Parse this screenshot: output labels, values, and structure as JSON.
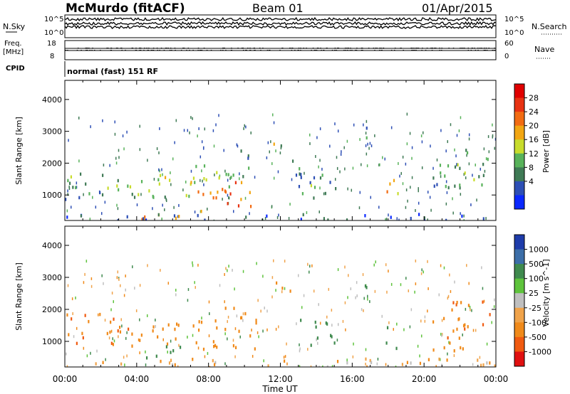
{
  "header": {
    "station": "McMurdo (fitACF)",
    "beam": "Beam 01",
    "date": "01/Apr/2015"
  },
  "top_panels": {
    "noise": {
      "left_label": "N.Sky",
      "right_label": "N.Search",
      "left_ticks": [
        "10^5",
        "10^0"
      ],
      "right_ticks": [
        "10^5",
        "10^0"
      ]
    },
    "freq": {
      "left_label_1": "Freq.",
      "left_label_2": "[MHz]",
      "right_label": "Nave",
      "left_ticks": [
        "18",
        "8"
      ],
      "right_ticks": [
        "60",
        "0"
      ]
    },
    "cpid": {
      "label": "CPID",
      "value": "normal (fast) 151 RF"
    }
  },
  "colors": {
    "power_scale": [
      "#0a28ff",
      "#2d4fb5",
      "#3f7a55",
      "#58b25a",
      "#c8dc2c",
      "#f2a612",
      "#f26b12",
      "#e83212",
      "#e00000"
    ],
    "velocity_scale": [
      "#1e3caa",
      "#3c6ea8",
      "#3f8a4e",
      "#5ec33c",
      "#bfbfbf",
      "#f0a34a",
      "#f08a1a",
      "#f05a10",
      "#e01010"
    ]
  },
  "chart_data": [
    {
      "type": "heatmap",
      "name": "power",
      "xlabel": "Time UT",
      "ylabel": "Slant Range [km]",
      "xlim": [
        0,
        24
      ],
      "ylim": [
        200,
        4600
      ],
      "x_tick_labels": [
        "00:00",
        "04:00",
        "08:00",
        "12:00",
        "16:00",
        "20:00",
        "00:00"
      ],
      "y_tick_labels": [
        "1000",
        "2000",
        "3000",
        "4000"
      ],
      "colorbar_label": "Power [dB]",
      "colorbar_ticks": [
        "28",
        "24",
        "20",
        "16",
        "12",
        "8",
        "4"
      ],
      "regions": [
        {
          "t": [
            0.0,
            2.8
          ],
          "r": [
            900,
            1800
          ],
          "v": 12
        },
        {
          "t": [
            2.8,
            6.0
          ],
          "r": [
            800,
            1700
          ],
          "v": 14
        },
        {
          "t": [
            4.0,
            7.5
          ],
          "r": [
            200,
            500
          ],
          "v": 26
        },
        {
          "t": [
            5.0,
            7.2
          ],
          "r": [
            1000,
            1600
          ],
          "v": 18
        },
        {
          "t": [
            7.2,
            10.4
          ],
          "r": [
            500,
            1500
          ],
          "v": 26
        },
        {
          "t": [
            7.0,
            10.5
          ],
          "r": [
            1300,
            2000
          ],
          "v": 14
        },
        {
          "t": [
            9.0,
            10.5
          ],
          "r": [
            2100,
            2500
          ],
          "v": 10
        },
        {
          "t": [
            11.5,
            12.5
          ],
          "r": [
            2500,
            2900
          ],
          "v": 16
        },
        {
          "t": [
            12.0,
            13.2
          ],
          "r": [
            1300,
            2200
          ],
          "v": 10
        },
        {
          "t": [
            13.0,
            15.2
          ],
          "r": [
            900,
            1700
          ],
          "v": 12
        },
        {
          "t": [
            13.5,
            14.3
          ],
          "r": [
            1200,
            1600
          ],
          "v": 18
        },
        {
          "t": [
            16.2,
            16.8
          ],
          "r": [
            2700,
            3200
          ],
          "v": 8
        },
        {
          "t": [
            17.8,
            18.7
          ],
          "r": [
            800,
            1600
          ],
          "v": 22
        },
        {
          "t": [
            20.4,
            22.0
          ],
          "r": [
            800,
            2100
          ],
          "v": 10
        },
        {
          "t": [
            21.8,
            23.6
          ],
          "r": [
            1200,
            2500
          ],
          "v": 14
        },
        {
          "t": [
            0.0,
            24.0
          ],
          "r": [
            250,
            450
          ],
          "v": 6
        }
      ]
    },
    {
      "type": "heatmap",
      "name": "velocity",
      "xlabel": "Time UT",
      "ylabel": "Slant Range [km]",
      "xlim": [
        0,
        24
      ],
      "ylim": [
        200,
        4600
      ],
      "x_tick_labels": [
        "00:00",
        "04:00",
        "08:00",
        "12:00",
        "16:00",
        "20:00",
        "00:00"
      ],
      "y_tick_labels": [
        "1000",
        "2000",
        "3000",
        "4000"
      ],
      "colorbar_label": "Velocity [m s^-1]",
      "colorbar_ticks": [
        "1000",
        "500",
        "100",
        "25",
        "-25",
        "-100",
        "-500",
        "-1000"
      ],
      "regions": [
        {
          "t": [
            0.0,
            3.5
          ],
          "r": [
            900,
            1900
          ],
          "v": -500
        },
        {
          "t": [
            3.5,
            7.0
          ],
          "r": [
            900,
            1600
          ],
          "v": -300
        },
        {
          "t": [
            4.5,
            7.0
          ],
          "r": [
            500,
            900
          ],
          "v": 200
        },
        {
          "t": [
            7.0,
            10.8
          ],
          "r": [
            800,
            1800
          ],
          "v": -200
        },
        {
          "t": [
            8.5,
            10.5
          ],
          "r": [
            1700,
            2100
          ],
          "v": -300
        },
        {
          "t": [
            11.5,
            12.8
          ],
          "r": [
            2500,
            2900
          ],
          "v": -200
        },
        {
          "t": [
            13.0,
            15.0
          ],
          "r": [
            900,
            1800
          ],
          "v": 300
        },
        {
          "t": [
            16.2,
            16.9
          ],
          "r": [
            2700,
            3200
          ],
          "v": 500
        },
        {
          "t": [
            17.8,
            18.6
          ],
          "r": [
            800,
            1500
          ],
          "v": 300
        },
        {
          "t": [
            20.3,
            22.5
          ],
          "r": [
            700,
            1900
          ],
          "v": -400
        },
        {
          "t": [
            21.5,
            23.7
          ],
          "r": [
            1300,
            2300
          ],
          "v": -600
        },
        {
          "t": [
            0.0,
            24.0
          ],
          "r": [
            250,
            500
          ],
          "v": -100
        }
      ]
    }
  ]
}
